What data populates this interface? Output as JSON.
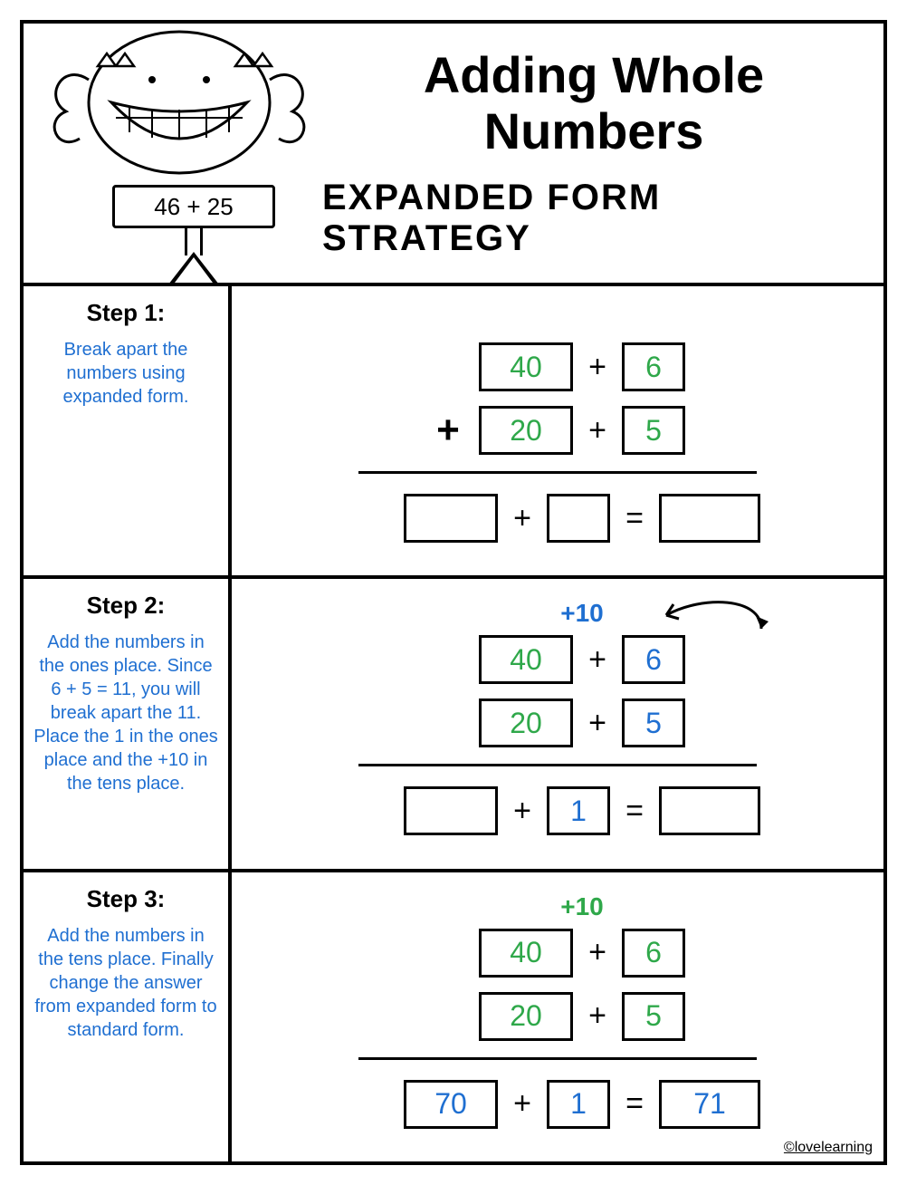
{
  "colors": {
    "text": "#000000",
    "blue": "#1f6fd1",
    "green": "#2fa84a",
    "border": "#000000",
    "background": "#ffffff"
  },
  "typography": {
    "title_fontsize": 56,
    "subtitle_fontsize": 40,
    "step_title_fontsize": 26,
    "step_desc_fontsize": 20,
    "box_fontsize": 32,
    "font_family": "Comic Sans MS"
  },
  "header": {
    "title": "Adding Whole Numbers",
    "subtitle": "EXPANDED FORM STRATEGY",
    "sign_expression": "46 + 25"
  },
  "steps": [
    {
      "title": "Step 1:",
      "desc": "Break apart the numbers using expanded form.",
      "desc_color": "#1f6fd1",
      "carry": "",
      "carry_color": "#1f6fd1",
      "row1": {
        "tens": "40",
        "tens_color": "#2fa84a",
        "ones": "6",
        "ones_color": "#2fa84a"
      },
      "row2": {
        "tens": "20",
        "tens_color": "#2fa84a",
        "ones": "5",
        "ones_color": "#2fa84a"
      },
      "show_leading_plus": true,
      "show_arrow": false,
      "result": {
        "tens": "",
        "ones": "",
        "ones_color": "#1f6fd1",
        "eq": "=",
        "answer": "",
        "answer_color": "#1f6fd1"
      }
    },
    {
      "title": "Step 2:",
      "desc": "Add the numbers in the ones place. Since 6 + 5 = 11, you will break apart the 11. Place the 1 in the ones place and the +10 in the tens place.",
      "desc_color": "#1f6fd1",
      "carry": "+10",
      "carry_color": "#1f6fd1",
      "row1": {
        "tens": "40",
        "tens_color": "#2fa84a",
        "ones": "6",
        "ones_color": "#1f6fd1"
      },
      "row2": {
        "tens": "20",
        "tens_color": "#2fa84a",
        "ones": "5",
        "ones_color": "#1f6fd1"
      },
      "show_leading_plus": false,
      "show_arrow": true,
      "result": {
        "tens": "",
        "ones": "1",
        "ones_color": "#1f6fd1",
        "eq": "=",
        "answer": "",
        "answer_color": "#1f6fd1"
      }
    },
    {
      "title": "Step 3:",
      "desc": "Add the numbers in the tens place. Finally change the answer from expanded form to standard form.",
      "desc_color": "#1f6fd1",
      "carry": "+10",
      "carry_color": "#2fa84a",
      "row1": {
        "tens": "40",
        "tens_color": "#2fa84a",
        "ones": "6",
        "ones_color": "#2fa84a"
      },
      "row2": {
        "tens": "20",
        "tens_color": "#2fa84a",
        "ones": "5",
        "ones_color": "#2fa84a"
      },
      "show_leading_plus": false,
      "show_arrow": false,
      "result": {
        "tens": "70",
        "tens_color": "#1f6fd1",
        "ones": "1",
        "ones_color": "#1f6fd1",
        "eq": "=",
        "answer": "71",
        "answer_color": "#1f6fd1"
      }
    }
  ],
  "credit": "©lovelearning",
  "ops": {
    "plus": "+",
    "eq": "="
  }
}
